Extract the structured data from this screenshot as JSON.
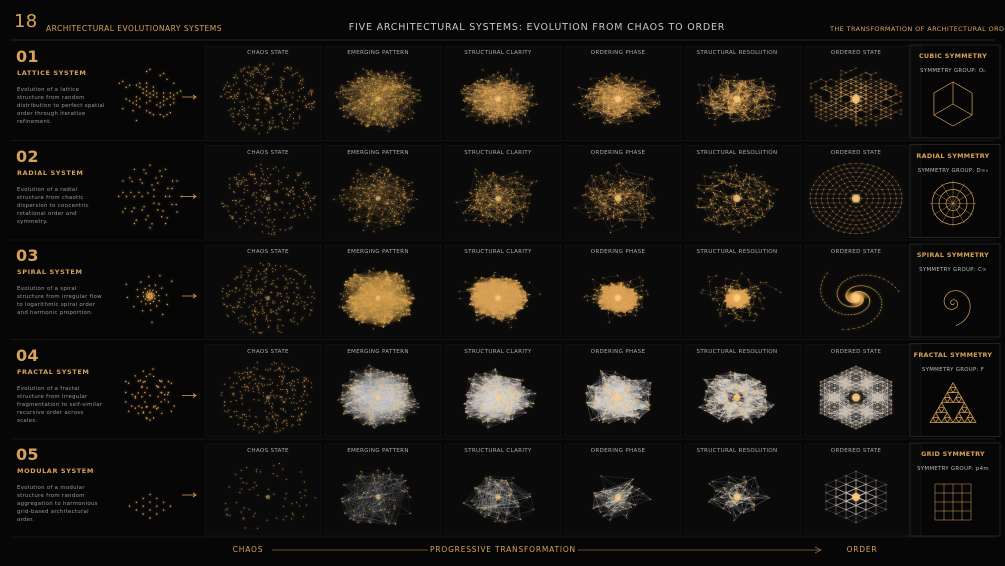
{
  "header": {
    "number": "18",
    "left_title": "ARCHITECTURAL EVOLUTIONARY SYSTEMS",
    "title": "FIVE ARCHITECTURAL SYSTEMS: EVOLUTION FROM CHAOS TO ORDER",
    "right_title": "THE TRANSFORMATION OF ARCHITECTURAL ORDER"
  },
  "rows": [
    {
      "number": "01",
      "title": "LATTICE SYSTEM",
      "description": "Evolution of a lattice structure from random distribution to perfect spatial order through iterative refinement.",
      "stages": [
        "CHAOS STATE",
        "EMERGING PATTERN",
        "STRUCTURAL CLARITY",
        "ORDERING PHASE",
        "STRUCTURAL RESOLUTION",
        "ORDERED STATE"
      ],
      "symmetry_title": "CUBIC SYMMETRY",
      "symmetry_group": "SYMMETRY GROUP: Oₕ"
    },
    {
      "number": "02",
      "title": "RADIAL SYSTEM",
      "description": "Evolution of a radial structure from chaotic dispersion to concentric rotational order and symmetry.",
      "stages": [
        "CHAOS STATE",
        "EMERGING PATTERN",
        "STRUCTURAL CLARITY",
        "ORDERING PHASE",
        "STRUCTURAL RESOLUTION",
        "ORDERED STATE"
      ],
      "symmetry_title": "RADIAL SYMMETRY",
      "symmetry_group": "SYMMETRY GROUP: D∞ₕ"
    },
    {
      "number": "03",
      "title": "SPIRAL SYSTEM",
      "description": "Evolution of a spiral structure from irregular flow to logarithmic spiral order and harmonic proportion.",
      "stages": [
        "CHAOS STATE",
        "EMERGING PATTERN",
        "STRUCTURAL CLARITY",
        "ORDERING PHASE",
        "STRUCTURAL RESOLUTION",
        "ORDERED STATE"
      ],
      "symmetry_title": "SPIRAL SYMMETRY",
      "symmetry_group": "SYMMETRY GROUP: C∞"
    },
    {
      "number": "04",
      "title": "FRACTAL SYSTEM",
      "description": "Evolution of a fractal structure from irregular fragmentation to self-similar recursive order across scales.",
      "stages": [
        "CHAOS STATE",
        "EMERGING PATTERN",
        "STRUCTURAL CLARITY",
        "ORDERING PHASE",
        "STRUCTURAL RESOLUTION",
        "ORDERED STATE"
      ],
      "symmetry_title": "FRACTAL SYMMETRY",
      "symmetry_group": "SYMMETRY GROUP: F"
    },
    {
      "number": "05",
      "title": "MODULAR SYSTEM",
      "description": "Evolution of a modular structure from random aggregation to harmonious grid-based architectural order.",
      "stages": [
        "CHAOS STATE",
        "EMERGING PATTERN",
        "STRUCTURAL CLARITY",
        "ORDERING PHASE",
        "STRUCTURAL RESOLUTION",
        "ORDERED STATE"
      ],
      "symmetry_title": "GRID SYMMETRY",
      "symmetry_group": "SYMMETRY GROUP: p4m"
    }
  ],
  "footer": {
    "start": "CHAOS",
    "middle": "PROGRESSIVE TRANSFORMATION",
    "end": "ORDER"
  }
}
